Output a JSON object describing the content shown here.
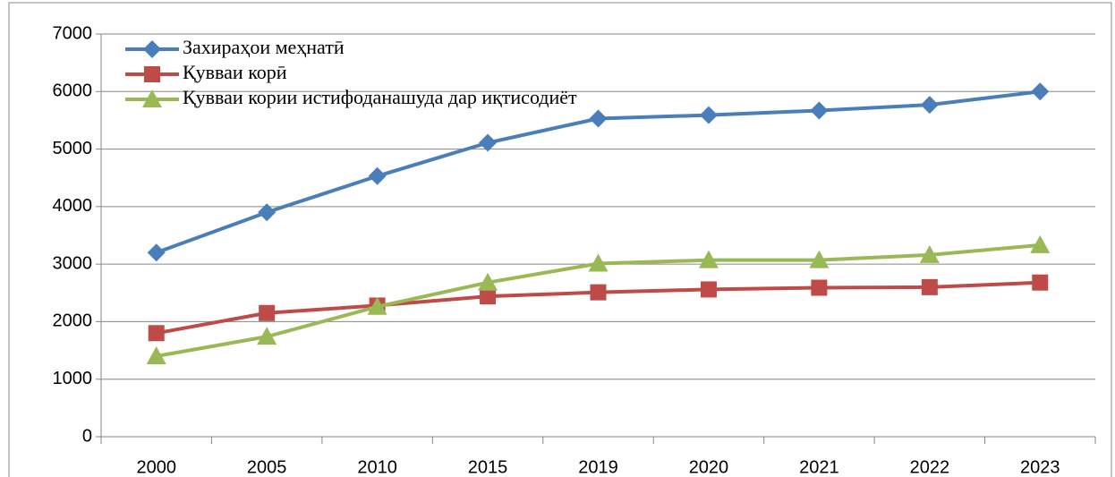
{
  "chart_data": {
    "type": "line",
    "categories": [
      "2000",
      "2005",
      "2010",
      "2015",
      "2019",
      "2020",
      "2021",
      "2022",
      "2023"
    ],
    "series": [
      {
        "name": "Захираҳои меҳнатӣ",
        "color": "#4a7ebb",
        "marker": "diamond",
        "values": [
          3200,
          3900,
          4530,
          5110,
          5530,
          5590,
          5670,
          5770,
          6000
        ]
      },
      {
        "name": "Қувваи корӣ",
        "color": "#be4b48",
        "marker": "square",
        "values": [
          1800,
          2150,
          2280,
          2440,
          2510,
          2560,
          2590,
          2600,
          2680
        ]
      },
      {
        "name": "Қувваи кории истифоданашуда дар иқтисодиёт",
        "color": "#98b954",
        "marker": "triangle",
        "values": [
          1400,
          1740,
          2260,
          2680,
          3010,
          3070,
          3070,
          3160,
          3330
        ]
      }
    ],
    "ylim": [
      0,
      7000
    ],
    "yticks": [
      0,
      1000,
      2000,
      3000,
      4000,
      5000,
      6000,
      7000
    ],
    "grid": true,
    "legend": "top-left"
  }
}
